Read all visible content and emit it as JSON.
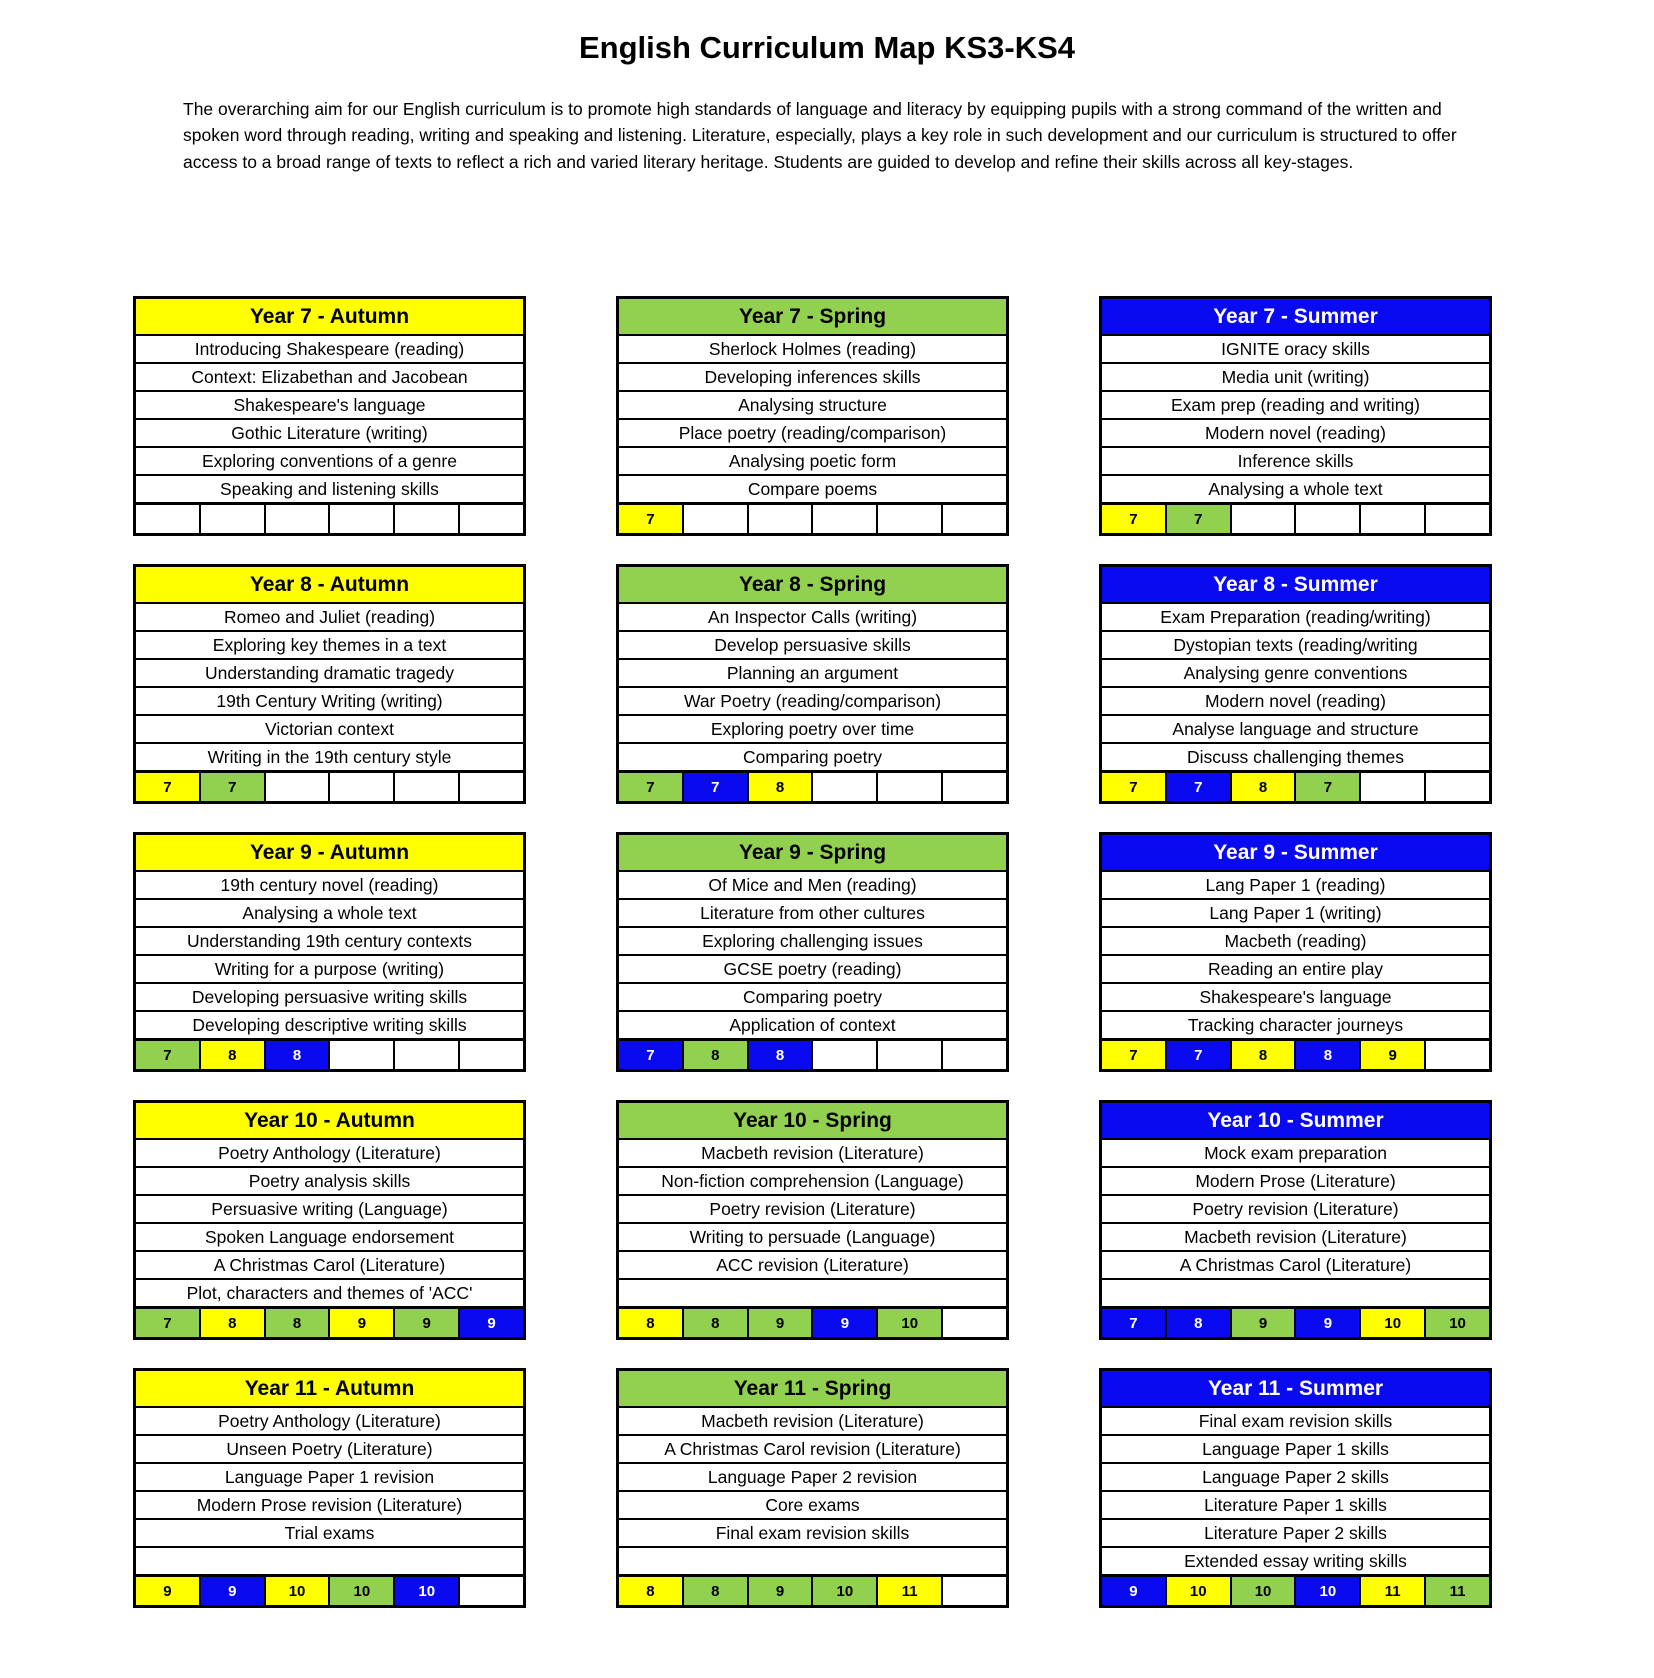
{
  "title": "English Curriculum Map KS3-KS4",
  "intro": "The overarching aim for our English curriculum is to promote high standards of language and literacy by equipping pupils with a strong command of the written and spoken word through reading, writing and speaking and listening. Literature, especially, plays a key role in such development and our curriculum is structured to offer access to a broad range of texts to reflect a rich and varied literary heritage. Students are guided to develop and refine their skills across all key-stages.",
  "colors": {
    "yellow": "#FFFF00",
    "green": "#92D050",
    "blue": "#0A0AF0",
    "none": "#FFFFFF"
  },
  "blocks": [
    {
      "title": "Year 7 - Autumn",
      "header_color": "yellow",
      "rows": [
        "Introducing Shakespeare (reading)",
        "Context: Elizabethan and Jacobean",
        "Shakespeare's language",
        "Gothic Literature (writing)",
        "Exploring conventions of a genre",
        "Speaking and listening skills"
      ],
      "markers": [
        {
          "label": "",
          "color": "none"
        },
        {
          "label": "",
          "color": "none"
        },
        {
          "label": "",
          "color": "none"
        },
        {
          "label": "",
          "color": "none"
        },
        {
          "label": "",
          "color": "none"
        },
        {
          "label": "",
          "color": "none"
        }
      ]
    },
    {
      "title": "Year 7 - Spring",
      "header_color": "green",
      "rows": [
        "Sherlock Holmes (reading)",
        "Developing inferences skills",
        "Analysing structure",
        "Place poetry (reading/comparison)",
        "Analysing poetic form",
        "Compare poems"
      ],
      "markers": [
        {
          "label": "7",
          "color": "yellow"
        },
        {
          "label": "",
          "color": "none"
        },
        {
          "label": "",
          "color": "none"
        },
        {
          "label": "",
          "color": "none"
        },
        {
          "label": "",
          "color": "none"
        },
        {
          "label": "",
          "color": "none"
        }
      ]
    },
    {
      "title": "Year 7 - Summer",
      "header_color": "blue",
      "rows": [
        "IGNITE oracy skills",
        "Media unit (writing)",
        "Exam prep (reading and writing)",
        "Modern novel (reading)",
        "Inference skills",
        "Analysing a whole text"
      ],
      "markers": [
        {
          "label": "7",
          "color": "yellow"
        },
        {
          "label": "7",
          "color": "green"
        },
        {
          "label": "",
          "color": "none"
        },
        {
          "label": "",
          "color": "none"
        },
        {
          "label": "",
          "color": "none"
        },
        {
          "label": "",
          "color": "none"
        }
      ]
    },
    {
      "title": "Year 8 - Autumn",
      "header_color": "yellow",
      "rows": [
        "Romeo and Juliet (reading)",
        "Exploring key themes in a text",
        "Understanding dramatic tragedy",
        "19th Century Writing (writing)",
        "Victorian context",
        "Writing in the 19th century style"
      ],
      "markers": [
        {
          "label": "7",
          "color": "yellow"
        },
        {
          "label": "7",
          "color": "green"
        },
        {
          "label": "",
          "color": "none"
        },
        {
          "label": "",
          "color": "none"
        },
        {
          "label": "",
          "color": "none"
        },
        {
          "label": "",
          "color": "none"
        }
      ]
    },
    {
      "title": "Year 8 - Spring",
      "header_color": "green",
      "rows": [
        "An Inspector Calls (writing)",
        "Develop persuasive skills",
        "Planning an argument",
        "War Poetry (reading/comparison)",
        "Exploring poetry over time",
        "Comparing poetry"
      ],
      "markers": [
        {
          "label": "7",
          "color": "green"
        },
        {
          "label": "7",
          "color": "blue"
        },
        {
          "label": "8",
          "color": "yellow"
        },
        {
          "label": "",
          "color": "none"
        },
        {
          "label": "",
          "color": "none"
        },
        {
          "label": "",
          "color": "none"
        }
      ]
    },
    {
      "title": "Year 8 - Summer",
      "header_color": "blue",
      "rows": [
        "Exam Preparation (reading/writing)",
        "Dystopian texts (reading/writing",
        "Analysing genre conventions",
        "Modern novel (reading)",
        "Analyse language and structure",
        "Discuss challenging themes"
      ],
      "markers": [
        {
          "label": "7",
          "color": "yellow"
        },
        {
          "label": "7",
          "color": "blue"
        },
        {
          "label": "8",
          "color": "yellow"
        },
        {
          "label": "7",
          "color": "green"
        },
        {
          "label": "",
          "color": "none"
        },
        {
          "label": "",
          "color": "none"
        }
      ]
    },
    {
      "title": "Year 9 - Autumn",
      "header_color": "yellow",
      "rows": [
        "19th century novel (reading)",
        "Analysing a whole text",
        "Understanding 19th century contexts",
        "Writing for a purpose (writing)",
        "Developing persuasive writing skills",
        "Developing descriptive writing skills"
      ],
      "markers": [
        {
          "label": "7",
          "color": "green"
        },
        {
          "label": "8",
          "color": "yellow"
        },
        {
          "label": "8",
          "color": "blue"
        },
        {
          "label": "",
          "color": "none"
        },
        {
          "label": "",
          "color": "none"
        },
        {
          "label": "",
          "color": "none"
        }
      ]
    },
    {
      "title": "Year 9 - Spring",
      "header_color": "green",
      "rows": [
        "Of Mice and Men (reading)",
        "Literature from other cultures",
        "Exploring challenging issues",
        "GCSE poetry (reading)",
        "Comparing poetry",
        "Application of context"
      ],
      "markers": [
        {
          "label": "7",
          "color": "blue"
        },
        {
          "label": "8",
          "color": "green"
        },
        {
          "label": "8",
          "color": "blue"
        },
        {
          "label": "",
          "color": "none"
        },
        {
          "label": "",
          "color": "none"
        },
        {
          "label": "",
          "color": "none"
        }
      ]
    },
    {
      "title": "Year 9 - Summer",
      "header_color": "blue",
      "rows": [
        "Lang Paper 1 (reading)",
        "Lang Paper 1 (writing)",
        "Macbeth (reading)",
        "Reading an entire play",
        "Shakespeare's language",
        "Tracking character journeys"
      ],
      "markers": [
        {
          "label": "7",
          "color": "yellow"
        },
        {
          "label": "7",
          "color": "blue"
        },
        {
          "label": "8",
          "color": "yellow"
        },
        {
          "label": "8",
          "color": "blue"
        },
        {
          "label": "9",
          "color": "yellow"
        },
        {
          "label": "",
          "color": "none"
        }
      ]
    },
    {
      "title": "Year 10 - Autumn",
      "header_color": "yellow",
      "rows": [
        "Poetry Anthology (Literature)",
        "Poetry analysis skills",
        "Persuasive writing (Language)",
        "Spoken Language endorsement",
        "A Christmas Carol (Literature)",
        "Plot, characters and themes of 'ACC'"
      ],
      "markers": [
        {
          "label": "7",
          "color": "green"
        },
        {
          "label": "8",
          "color": "yellow"
        },
        {
          "label": "8",
          "color": "green"
        },
        {
          "label": "9",
          "color": "yellow"
        },
        {
          "label": "9",
          "color": "green"
        },
        {
          "label": "9",
          "color": "blue"
        }
      ]
    },
    {
      "title": "Year 10 - Spring",
      "header_color": "green",
      "rows": [
        "Macbeth revision (Literature)",
        "Non-fiction comprehension (Language)",
        "Poetry revision (Literature)",
        "Writing to persuade (Language)",
        "ACC revision (Literature)",
        ""
      ],
      "markers": [
        {
          "label": "8",
          "color": "yellow"
        },
        {
          "label": "8",
          "color": "green"
        },
        {
          "label": "9",
          "color": "green"
        },
        {
          "label": "9",
          "color": "blue"
        },
        {
          "label": "10",
          "color": "green"
        },
        {
          "label": "",
          "color": "none"
        }
      ]
    },
    {
      "title": "Year 10 - Summer",
      "header_color": "blue",
      "rows": [
        "Mock exam preparation",
        "Modern Prose (Literature)",
        "Poetry revision (Literature)",
        "Macbeth revision (Literature)",
        "A Christmas Carol (Literature)",
        ""
      ],
      "markers": [
        {
          "label": "7",
          "color": "blue"
        },
        {
          "label": "8",
          "color": "blue"
        },
        {
          "label": "9",
          "color": "green"
        },
        {
          "label": "9",
          "color": "blue"
        },
        {
          "label": "10",
          "color": "yellow"
        },
        {
          "label": "10",
          "color": "green"
        }
      ]
    },
    {
      "title": "Year 11 - Autumn",
      "header_color": "yellow",
      "rows": [
        "Poetry Anthology (Literature)",
        "Unseen Poetry (Literature)",
        "Language Paper 1 revision",
        "Modern Prose revision (Literature)",
        "Trial exams",
        ""
      ],
      "markers": [
        {
          "label": "9",
          "color": "yellow"
        },
        {
          "label": "9",
          "color": "blue"
        },
        {
          "label": "10",
          "color": "yellow"
        },
        {
          "label": "10",
          "color": "green"
        },
        {
          "label": "10",
          "color": "blue"
        },
        {
          "label": "",
          "color": "none"
        }
      ]
    },
    {
      "title": "Year 11 - Spring",
      "header_color": "green",
      "rows": [
        "Macbeth revision (Literature)",
        "A Christmas Carol revision (Literature)",
        "Language Paper 2 revision",
        "Core exams",
        "Final exam revision skills",
        ""
      ],
      "markers": [
        {
          "label": "8",
          "color": "yellow"
        },
        {
          "label": "8",
          "color": "green"
        },
        {
          "label": "9",
          "color": "green"
        },
        {
          "label": "10",
          "color": "green"
        },
        {
          "label": "11",
          "color": "yellow"
        },
        {
          "label": "",
          "color": "none"
        }
      ]
    },
    {
      "title": "Year 11 - Summer",
      "header_color": "blue",
      "rows": [
        "Final exam revision skills",
        "Language Paper 1 skills",
        "Language Paper 2 skills",
        "Literature Paper 1 skills",
        "Literature Paper 2 skills",
        "Extended essay writing skills"
      ],
      "markers": [
        {
          "label": "9",
          "color": "blue"
        },
        {
          "label": "10",
          "color": "yellow"
        },
        {
          "label": "10",
          "color": "green"
        },
        {
          "label": "10",
          "color": "blue"
        },
        {
          "label": "11",
          "color": "yellow"
        },
        {
          "label": "11",
          "color": "green"
        }
      ]
    }
  ]
}
